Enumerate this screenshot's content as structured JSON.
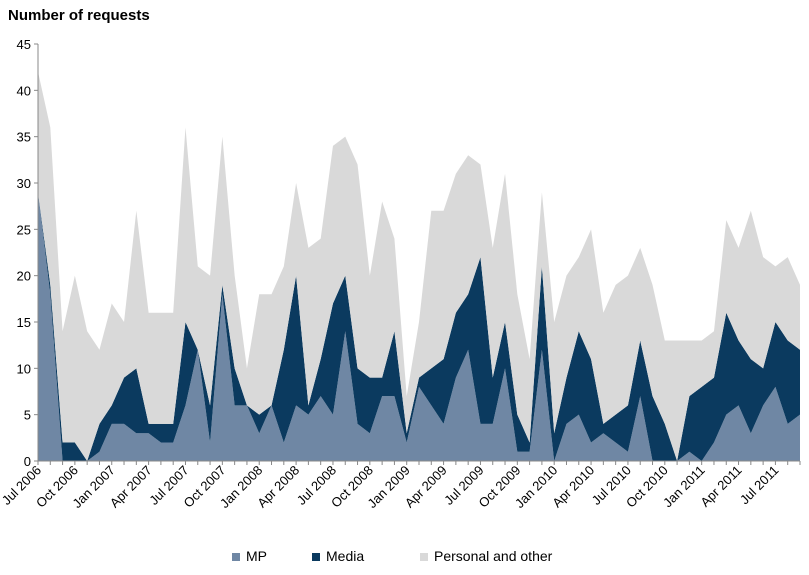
{
  "chart_data": {
    "type": "area",
    "stacked": true,
    "ylabel": "Number of requests",
    "ylim": [
      0,
      45
    ],
    "yticks": [
      0,
      5,
      10,
      15,
      20,
      25,
      30,
      35,
      40,
      45
    ],
    "grid": false,
    "legend_position": "bottom",
    "x": [
      "Jul 2006",
      "Aug 2006",
      "Sep 2006",
      "Oct 2006",
      "Nov 2006",
      "Dec 2006",
      "Jan 2007",
      "Feb 2007",
      "Mar 2007",
      "Apr 2007",
      "May 2007",
      "Jun 2007",
      "Jul 2007",
      "Aug 2007",
      "Sep 2007",
      "Oct 2007",
      "Nov 2007",
      "Dec 2007",
      "Jan 2008",
      "Feb 2008",
      "Mar 2008",
      "Apr 2008",
      "May 2008",
      "Jun 2008",
      "Jul 2008",
      "Aug 2008",
      "Sep 2008",
      "Oct 2008",
      "Nov 2008",
      "Dec 2008",
      "Jan 2009",
      "Feb 2009",
      "Mar 2009",
      "Apr 2009",
      "May 2009",
      "Jun 2009",
      "Jul 2009",
      "Aug 2009",
      "Sep 2009",
      "Oct 2009",
      "Nov 2009",
      "Dec 2009",
      "Jan 2010",
      "Feb 2010",
      "Mar 2010",
      "Apr 2010",
      "May 2010",
      "Jun 2010",
      "Jul 2010",
      "Aug 2010",
      "Sep 2010",
      "Oct 2010",
      "Nov 2010",
      "Dec 2010",
      "Jan 2011",
      "Feb 2011",
      "Mar 2011",
      "Apr 2011",
      "May 2011",
      "Jun 2011",
      "Jul 2011",
      "Aug 2011",
      "Sep 2011"
    ],
    "xtick_labels": [
      "Jul 2006",
      "Oct 2006",
      "Jan 2007",
      "Apr 2007",
      "Jul 2007",
      "Oct 2007",
      "Jan 2008",
      "Apr 2008",
      "Jul 2008",
      "Oct 2008",
      "Jan 2009",
      "Apr 2009",
      "Jul 2009",
      "Oct 2009",
      "Jan 2010",
      "Apr 2010",
      "Jul 2010",
      "Oct 2010",
      "Jan 2011",
      "Apr 2011",
      "Jul 2011"
    ],
    "series": [
      {
        "name": "MP",
        "color": "#6f87a4",
        "values": [
          29,
          18,
          0,
          0,
          0,
          1,
          4,
          4,
          3,
          3,
          2,
          2,
          6,
          12,
          2,
          18,
          6,
          6,
          3,
          6,
          2,
          6,
          5,
          7,
          5,
          14,
          4,
          3,
          7,
          7,
          2,
          8,
          6,
          4,
          9,
          12,
          4,
          4,
          10,
          1,
          1,
          12,
          0,
          4,
          5,
          2,
          3,
          2,
          1,
          7,
          0,
          0,
          0,
          1,
          0,
          2,
          5,
          6,
          3,
          6,
          8,
          4,
          5
        ]
      },
      {
        "name": "Media",
        "color": "#0b3a5f",
        "values": [
          0,
          1,
          2,
          2,
          0,
          3,
          2,
          5,
          7,
          1,
          2,
          2,
          9,
          0,
          4,
          1,
          4,
          0,
          2,
          0,
          10,
          14,
          1,
          4,
          12,
          6,
          6,
          6,
          2,
          7,
          1,
          1,
          4,
          7,
          7,
          6,
          18,
          5,
          5,
          4,
          1,
          9,
          3,
          5,
          9,
          9,
          1,
          3,
          5,
          6,
          7,
          4,
          0,
          6,
          8,
          7,
          11,
          7,
          8,
          4,
          7,
          9,
          7
        ]
      },
      {
        "name": "Personal and other",
        "color": "#d9d9d9",
        "values": [
          13,
          17,
          12,
          18,
          14,
          8,
          11,
          6,
          17,
          12,
          12,
          12,
          21,
          9,
          14,
          16,
          10,
          4,
          13,
          12,
          9,
          10,
          17,
          13,
          17,
          15,
          22,
          11,
          19,
          10,
          4,
          6,
          17,
          16,
          15,
          15,
          10,
          14,
          16,
          13,
          9,
          8,
          12,
          11,
          8,
          14,
          12,
          14,
          14,
          10,
          12,
          9,
          13,
          6,
          5,
          5,
          10,
          10,
          16,
          12,
          6,
          9,
          7
        ]
      }
    ]
  }
}
